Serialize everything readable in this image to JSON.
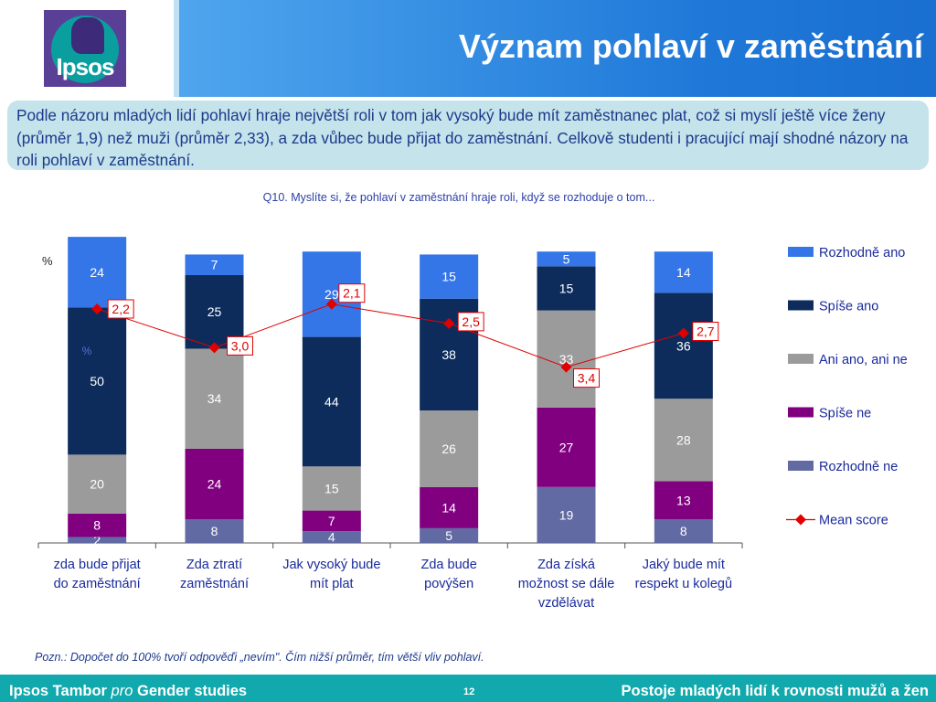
{
  "header": {
    "title": "Význam pohlaví v zaměstnání",
    "logo_text": "Ipsos"
  },
  "summary": "Podle názoru mladých lidí pohlaví hraje největší roli v tom jak vysoký bude mít zaměstnanec plat, což si myslí ještě více ženy (průměr 1,9) než muži (průměr 2,33), a zda vůbec bude přijat do zaměstnání. Celkově studenti i pracující mají shodné názory na roli pohlaví v zaměstnání.",
  "question": "Q10. Myslíte si, že pohlaví v zaměstnání hraje roli, když se rozhoduje o tom...",
  "note": "Pozn.: Dopočet do 100% tvoří odpověďi „nevím\". Čím nižší průměr, tím větší vliv pohlaví.",
  "footer": {
    "left_a": "Ipsos Tambor ",
    "left_b": "pro",
    "left_c": " Gender studies",
    "page": "12",
    "right": "Postoje mladých lidí k rovnosti mužů a žen"
  },
  "colors": {
    "header_blue": "#1f78d8",
    "summary_bg": "#c4e3ea",
    "footer_teal": "#11a9ad",
    "mean_red": "#e00000"
  },
  "chart_data": {
    "type": "bar",
    "stacked": true,
    "y_unit_label": "%",
    "ylim": [
      0,
      100
    ],
    "grid": false,
    "legend_position": "right",
    "categories": [
      [
        "zda bude přijat",
        "do zaměstnání"
      ],
      [
        "Zda ztratí",
        "zaměstnání"
      ],
      [
        "Jak vysoký bude",
        "mít plat"
      ],
      [
        "Zda bude",
        "povýšen"
      ],
      [
        "Zda získá",
        "možnost se dále",
        "vzdělávat"
      ],
      [
        "Jaký bude mít",
        "respekt u kolegů"
      ]
    ],
    "series": [
      {
        "name": "Rozhodně ne",
        "color": "#626aa3",
        "values": [
          2,
          8,
          4,
          5,
          19,
          8
        ]
      },
      {
        "name": "Spíše ne",
        "color": "#800080",
        "values": [
          8,
          24,
          7,
          14,
          27,
          13
        ]
      },
      {
        "name": "Ani ano, ani ne",
        "color": "#9b9b9b",
        "values": [
          20,
          34,
          15,
          26,
          33,
          28
        ]
      },
      {
        "name": "Spíše ano",
        "color": "#0d2c5c",
        "values": [
          50,
          25,
          44,
          38,
          15,
          36
        ]
      },
      {
        "name": "Rozhodně ano",
        "color": "#3476e8",
        "values": [
          24,
          7,
          29,
          15,
          5,
          14
        ]
      }
    ],
    "mean_score": {
      "name": "Mean score",
      "color": "#e00000",
      "values": [
        2.2,
        3.0,
        2.1,
        2.5,
        3.4,
        2.7
      ],
      "labels": [
        "2,2",
        "3,0",
        "2,1",
        "2,5",
        "3,4",
        "2,7"
      ]
    },
    "stray_label": "%"
  }
}
